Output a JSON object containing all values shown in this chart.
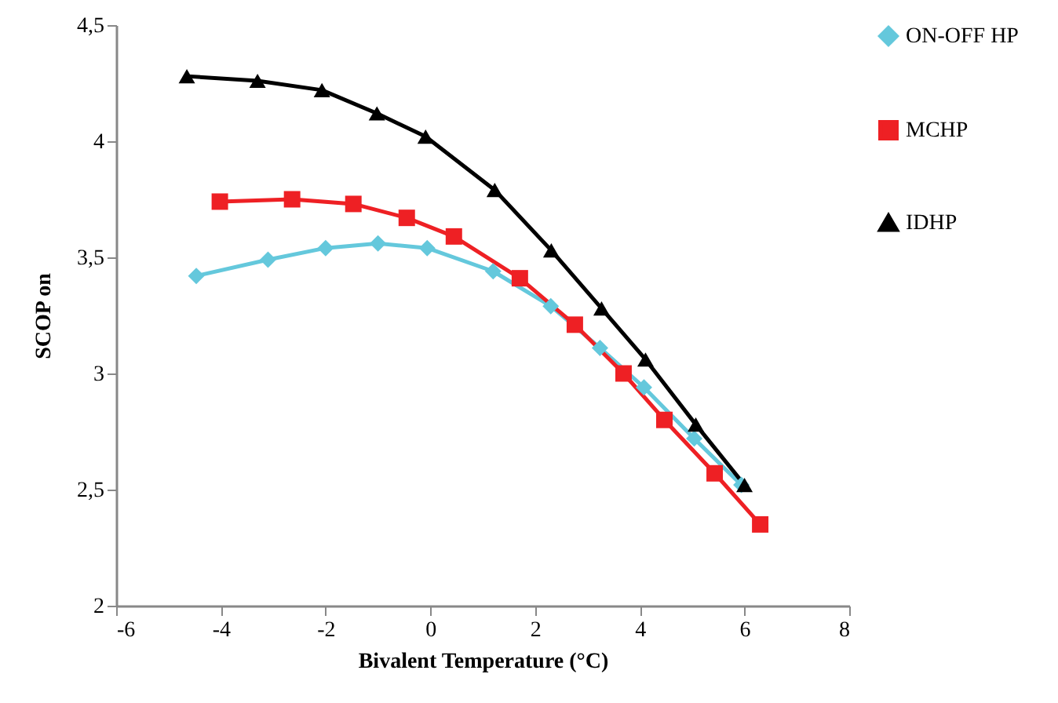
{
  "chart_data": {
    "type": "line",
    "xlabel": "Bivalent Temperature (°C)",
    "ylabel": "SCOP on",
    "xlim": [
      -6,
      8
    ],
    "xticks": [
      -6,
      -4,
      -2,
      0,
      2,
      4,
      6,
      8
    ],
    "ylim": [
      2,
      4.5
    ],
    "yticks": [
      2,
      {
        "value": 2.5,
        "label": "2,5"
      },
      3,
      {
        "value": 3.5,
        "label": "3,5"
      },
      4,
      {
        "value": 4.5,
        "label": "4,5"
      }
    ],
    "grid": false,
    "legend": "right",
    "line_style": "solid",
    "series": [
      {
        "name": "ON-OFF HP",
        "color": "#64c8dc",
        "marker": "diamond",
        "x": [
          -4.47,
          -3.1,
          -2.0,
          -1.0,
          -0.06,
          1.2,
          2.3,
          3.24,
          4.08,
          5.04,
          5.94
        ],
        "values": [
          3.42,
          3.49,
          3.54,
          3.56,
          3.54,
          3.44,
          3.29,
          3.11,
          2.94,
          2.72,
          2.52
        ]
      },
      {
        "name": "MCHP",
        "color": "#ee2024",
        "marker": "square",
        "x": [
          -4.02,
          -2.64,
          -1.47,
          -0.45,
          0.45,
          1.71,
          2.76,
          3.69,
          4.47,
          5.43,
          6.3
        ],
        "values": [
          3.74,
          3.75,
          3.73,
          3.67,
          3.59,
          3.41,
          3.21,
          3.0,
          2.8,
          2.57,
          2.35
        ]
      },
      {
        "name": "IDHP",
        "color": "#000000",
        "marker": "triangle",
        "x": [
          -4.65,
          -3.3,
          -2.07,
          -1.02,
          -0.09,
          1.23,
          2.31,
          3.27,
          4.11,
          5.07,
          6.0
        ],
        "values": [
          4.28,
          4.26,
          4.22,
          4.12,
          4.02,
          3.79,
          3.53,
          3.28,
          3.06,
          2.78,
          2.52
        ]
      }
    ]
  }
}
